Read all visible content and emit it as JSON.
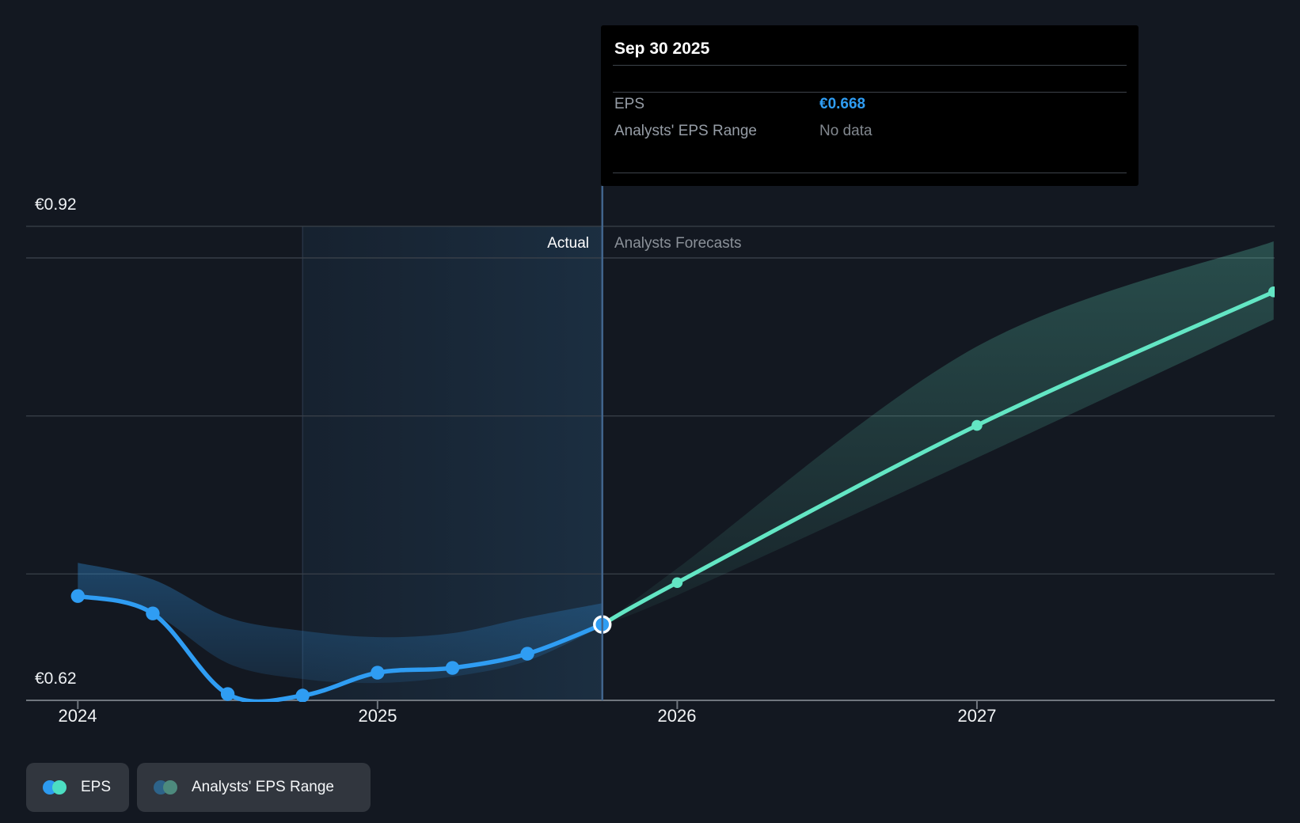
{
  "page": {
    "background": "#131821"
  },
  "tooltip": {
    "title": "Sep 30 2025",
    "rows": [
      {
        "label": "EPS",
        "value": "€0.668",
        "value_color": "#2f9df3"
      },
      {
        "label": "Analysts' EPS Range",
        "value": "No data",
        "value_color": "#82888f"
      }
    ]
  },
  "labels": {
    "actual": "Actual",
    "forecast": "Analysts Forecasts"
  },
  "legend": [
    {
      "label": "EPS",
      "colors": [
        "#2d9bf0",
        "#4cdec2"
      ]
    },
    {
      "label": "Analysts' EPS Range",
      "colors": [
        "#2d6389",
        "#4d8a7d"
      ]
    }
  ],
  "chart_data": {
    "type": "line",
    "title": "EPS actual vs analysts forecast",
    "currency": "EUR",
    "ylim": [
      0.62,
      0.935
    ],
    "grid": true,
    "y_gridline_values": [
      0.92,
      0.9,
      0.8,
      0.7
    ],
    "y_axis_value": 0.62,
    "y_axis_labels": [
      {
        "value": 0.92,
        "label": "€0.92"
      },
      {
        "value": 0.62,
        "label": "€0.62"
      }
    ],
    "x_ticks": [
      "2024",
      "2025",
      "2026",
      "2027"
    ],
    "x_tick_years": [
      2024,
      2025,
      2026,
      2027
    ],
    "divider_x": 2025.75,
    "divider_date": "Sep 30 2025",
    "highlight_span": [
      2024.75,
      2025.75
    ],
    "series": [
      {
        "name": "EPS",
        "kind": "actual",
        "x": [
          2024.0,
          2024.25,
          2024.5,
          2024.75,
          2025.0,
          2025.25,
          2025.5,
          2025.75
        ],
        "values": [
          0.686,
          0.675,
          0.624,
          0.623,
          0.6375,
          0.6405,
          0.6495,
          0.668
        ],
        "current_point": {
          "x": 2025.75,
          "value": 0.668,
          "date": "Sep 30 2025"
        }
      },
      {
        "name": "EPS forecast",
        "kind": "forecast",
        "x": [
          2025.75,
          2026.0,
          2027.0,
          2027.99
        ],
        "values": [
          0.668,
          0.6945,
          0.794,
          0.8785
        ]
      }
    ],
    "bands": [
      {
        "name": "actual_range",
        "series": "actual",
        "x": [
          2024.0,
          2024.25,
          2024.5,
          2024.75,
          2025.0,
          2025.25,
          2025.5,
          2025.75
        ],
        "top": [
          0.707,
          0.6965,
          0.6725,
          0.664,
          0.66,
          0.6625,
          0.6725,
          0.6815
        ],
        "bottom": [
          0.6865,
          0.675,
          0.6435,
          0.6335,
          0.631,
          0.635,
          0.645,
          0.667
        ]
      },
      {
        "name": "forecast_range",
        "series": "forecast",
        "x": [
          2025.75,
          2026.0,
          2027.0,
          2027.99
        ],
        "top": [
          0.668,
          0.7035,
          0.844,
          0.9105
        ],
        "bottom": [
          0.668,
          0.6865,
          0.7735,
          0.861
        ]
      }
    ],
    "colors": {
      "actual_line": "#2f9df3",
      "forecast_line": "#63e6c4",
      "actual_band_top": "rgba(47,143,220,0.45)",
      "actual_band_bottom": "rgba(47,143,220,0.10)",
      "forecast_band_top": "rgba(98,220,190,0.28)",
      "forecast_band_bottom": "rgba(98,220,190,0.05)",
      "grid": "#3a414a",
      "axis": "#70767e",
      "divider": "#41648c",
      "highlight_from": "rgba(56,130,190,0.09)",
      "highlight_to": "rgba(66,148,210,0.18)",
      "highlight_edge": "rgba(140,185,235,0.14)",
      "current_ring": "#ffffff"
    },
    "legend_position": "bottom-left"
  }
}
